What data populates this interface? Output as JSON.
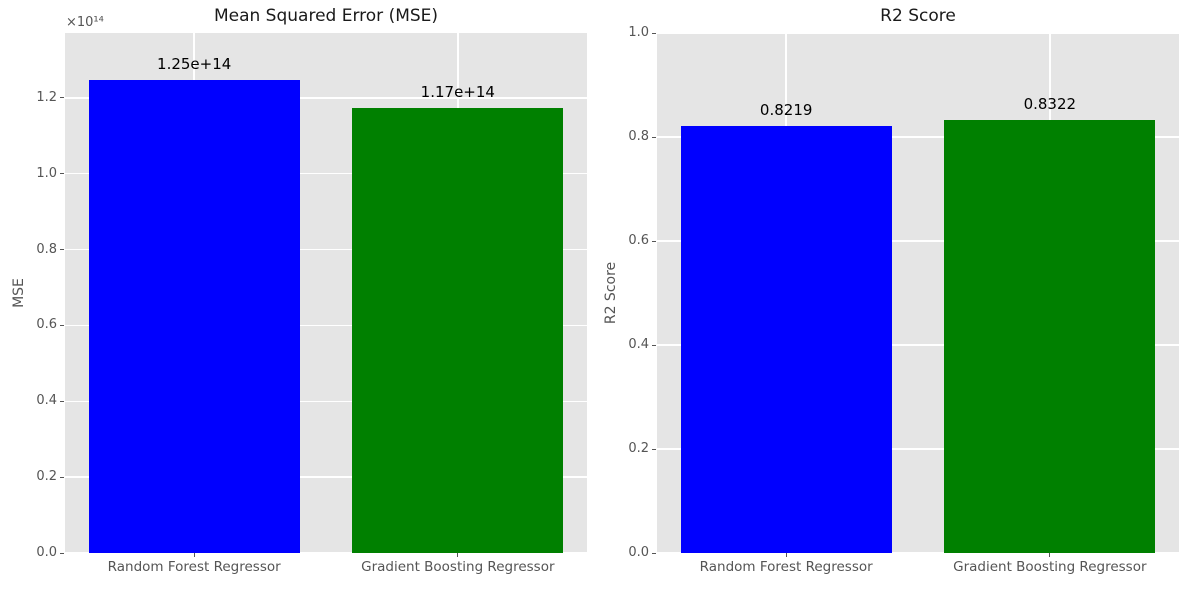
{
  "style": {
    "figure_background": "#ffffff",
    "plot_background": "#e5e5e5",
    "grid_color": "#ffffff",
    "tick_label_color": "#555555",
    "title_color": "#1a1a1a",
    "value_label_color": "#000000"
  },
  "chart_data": [
    {
      "type": "bar",
      "title": "Mean Squared Error (MSE)",
      "ylabel": "MSE",
      "xlabel": "",
      "offset_text": "×10¹⁴",
      "categories": [
        "Random Forest Regressor",
        "Gradient Boosting Regressor"
      ],
      "values": [
        124650000000000.0,
        117460000000000.0
      ],
      "bar_labels": [
        "1.25e+14",
        "1.17e+14"
      ],
      "bar_colors": [
        "#0000ff",
        "#008000"
      ],
      "bar_width": 0.8,
      "ylim": [
        0,
        137100000000000.0
      ],
      "yticks": [
        0,
        20000000000000.0,
        40000000000000.0,
        60000000000000.0,
        80000000000000.0,
        100000000000000.0,
        120000000000000.0
      ],
      "ytick_labels": [
        "0.0",
        "0.2",
        "0.4",
        "0.6",
        "0.8",
        "1.0",
        "1.2"
      ],
      "grid": true,
      "legend": false
    },
    {
      "type": "bar",
      "title": "R2 Score",
      "ylabel": "R2 Score",
      "xlabel": "",
      "offset_text": "",
      "categories": [
        "Random Forest Regressor",
        "Gradient Boosting Regressor"
      ],
      "values": [
        0.8219,
        0.8322
      ],
      "bar_labels": [
        "0.8219",
        "0.8322"
      ],
      "bar_colors": [
        "#0000ff",
        "#008000"
      ],
      "bar_width": 0.8,
      "ylim": [
        0,
        1.0
      ],
      "yticks": [
        0,
        0.2,
        0.4,
        0.6,
        0.8,
        1.0
      ],
      "ytick_labels": [
        "0.0",
        "0.2",
        "0.4",
        "0.6",
        "0.8",
        "1.0"
      ],
      "grid": true,
      "legend": false
    }
  ]
}
